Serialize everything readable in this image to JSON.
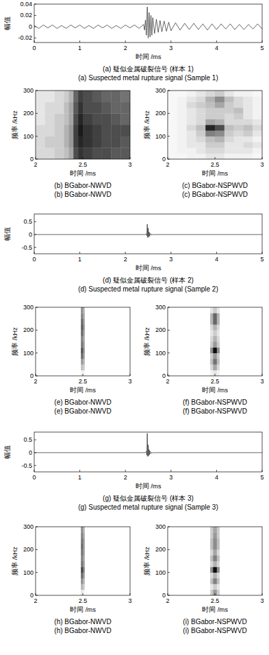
{
  "chart_data": [
    {
      "type": "line",
      "title": "(a) 疑似金属破裂信号 (样本 1)",
      "subtitle": "(a) Suspected metal rupture signal (Sample 1)",
      "xlabel": "时间 /ms",
      "ylabel": "幅值",
      "x": [
        0,
        0.1,
        0.2,
        0.3,
        0.4,
        0.5,
        0.6,
        0.7,
        0.8,
        0.9,
        1.0,
        1.1,
        1.2,
        1.3,
        1.4,
        1.5,
        1.6,
        1.7,
        1.8,
        1.9,
        2.0,
        2.1,
        2.2,
        2.3,
        2.4,
        2.42,
        2.44,
        2.46,
        2.48,
        2.5,
        2.52,
        2.54,
        2.56,
        2.58,
        2.6,
        2.64,
        2.68,
        2.72,
        2.76,
        2.8,
        2.85,
        2.9,
        2.95,
        3.0,
        3.1,
        3.2,
        3.3,
        3.4,
        3.5,
        3.6,
        3.7,
        3.8,
        3.9,
        4.0,
        4.1,
        4.2,
        4.3,
        4.4,
        4.5,
        4.6,
        4.7,
        4.8,
        4.9,
        5.0
      ],
      "values": [
        0.002,
        -0.003,
        0.003,
        -0.002,
        0.003,
        -0.003,
        0.002,
        -0.003,
        0.003,
        -0.002,
        0.003,
        -0.003,
        0.002,
        -0.003,
        0.003,
        -0.002,
        0.003,
        -0.003,
        0.002,
        -0.003,
        0.003,
        -0.002,
        0.003,
        -0.003,
        0.004,
        -0.006,
        0.012,
        -0.015,
        0.035,
        -0.02,
        0.025,
        -0.018,
        0.02,
        -0.015,
        0.016,
        -0.012,
        0.013,
        -0.01,
        0.011,
        -0.009,
        0.01,
        -0.008,
        0.008,
        -0.007,
        0.007,
        -0.006,
        0.006,
        -0.005,
        0.006,
        -0.005,
        0.005,
        -0.006,
        0.005,
        -0.005,
        0.005,
        -0.004,
        0.005,
        -0.005,
        0.004,
        -0.005,
        0.004,
        -0.004,
        0.005,
        -0.004
      ],
      "color": "#222222",
      "xlim": [
        0,
        5
      ],
      "ylim": [
        -0.028,
        0.04
      ],
      "xticks": [
        0,
        1,
        2,
        3,
        4,
        5
      ],
      "yticks": [
        -0.02,
        0,
        0.02,
        0.04
      ]
    },
    {
      "type": "heatmap",
      "title": "(b) BGabor-NWVD",
      "subtitle": "(b) BGabor-NWVD",
      "xlabel": "时间 /ms",
      "ylabel": "频率 /kHz",
      "x_edges": [
        2,
        2.1,
        2.2,
        2.3,
        2.35,
        2.4,
        2.45,
        2.5,
        2.6,
        2.7,
        2.8,
        2.9,
        3
      ],
      "y_edges": [
        0,
        50,
        100,
        150,
        200,
        250,
        300
      ],
      "cells": [
        [
          0.15,
          0.15,
          0.2,
          0.25,
          0.35,
          0.7,
          0.8,
          0.75,
          0.7,
          0.7,
          0.65,
          0.65
        ],
        [
          0.15,
          0.2,
          0.2,
          0.3,
          0.4,
          0.75,
          0.85,
          0.8,
          0.75,
          0.7,
          0.7,
          0.65
        ],
        [
          0.15,
          0.15,
          0.2,
          0.3,
          0.4,
          0.75,
          0.9,
          0.8,
          0.75,
          0.7,
          0.7,
          0.7
        ],
        [
          0.1,
          0.15,
          0.2,
          0.25,
          0.35,
          0.7,
          0.85,
          0.75,
          0.7,
          0.7,
          0.65,
          0.6
        ],
        [
          0.1,
          0.15,
          0.15,
          0.25,
          0.35,
          0.65,
          0.8,
          0.7,
          0.7,
          0.65,
          0.6,
          0.6
        ],
        [
          0.1,
          0.1,
          0.15,
          0.2,
          0.3,
          0.6,
          0.75,
          0.7,
          0.65,
          0.6,
          0.6,
          0.55
        ]
      ],
      "zlim": [
        0,
        1
      ],
      "color": "#000000",
      "xlim": [
        2,
        3
      ],
      "ylim": [
        0,
        300
      ],
      "xticks": [
        2,
        2.5,
        3
      ],
      "yticks": [
        0,
        100,
        200,
        300
      ]
    },
    {
      "type": "heatmap",
      "title": "(c) BGabor-NSPWVD",
      "subtitle": "(c) BGabor-NSPWVD",
      "xlabel": "时间 /ms",
      "ylabel": "频率 /kHz",
      "x_edges": [
        2,
        2.1,
        2.2,
        2.3,
        2.4,
        2.5,
        2.6,
        2.7,
        2.8,
        2.9,
        3
      ],
      "y_edges": [
        0,
        25,
        50,
        75,
        100,
        125,
        150,
        175,
        200,
        225,
        250,
        275,
        300
      ],
      "cells": [
        [
          0.03,
          0.03,
          0.05,
          0.05,
          0.1,
          0.1,
          0.05,
          0.05,
          0.05,
          0.03
        ],
        [
          0.03,
          0.05,
          0.05,
          0.1,
          0.15,
          0.15,
          0.1,
          0.1,
          0.1,
          0.05
        ],
        [
          0.03,
          0.05,
          0.1,
          0.1,
          0.2,
          0.2,
          0.1,
          0.1,
          0.15,
          0.1
        ],
        [
          0.03,
          0.05,
          0.1,
          0.15,
          0.25,
          0.3,
          0.15,
          0.1,
          0.1,
          0.05
        ],
        [
          0.03,
          0.05,
          0.1,
          0.2,
          0.5,
          0.45,
          0.2,
          0.15,
          0.2,
          0.1
        ],
        [
          0.03,
          0.05,
          0.15,
          0.25,
          0.85,
          0.7,
          0.25,
          0.2,
          0.25,
          0.15
        ],
        [
          0.03,
          0.05,
          0.1,
          0.15,
          0.35,
          0.3,
          0.15,
          0.15,
          0.15,
          0.1
        ],
        [
          0.03,
          0.05,
          0.1,
          0.15,
          0.2,
          0.2,
          0.15,
          0.2,
          0.1,
          0.05
        ],
        [
          0.03,
          0.05,
          0.1,
          0.15,
          0.2,
          0.2,
          0.2,
          0.25,
          0.1,
          0.05
        ],
        [
          0.03,
          0.05,
          0.15,
          0.2,
          0.25,
          0.35,
          0.2,
          0.15,
          0.1,
          0.05
        ],
        [
          0.03,
          0.05,
          0.1,
          0.15,
          0.3,
          0.45,
          0.25,
          0.15,
          0.1,
          0.05
        ],
        [
          0.03,
          0.03,
          0.05,
          0.1,
          0.15,
          0.2,
          0.1,
          0.05,
          0.05,
          0.03
        ]
      ],
      "zlim": [
        0,
        1
      ],
      "color": "#000000",
      "xlim": [
        2,
        3
      ],
      "ylim": [
        0,
        300
      ],
      "xticks": [
        2,
        2.5,
        3
      ],
      "yticks": [
        0,
        100,
        200,
        300
      ]
    },
    {
      "type": "line",
      "title": "(d) 疑似金属破裂信号 (样本 2)",
      "subtitle": "(d) Suspected metal rupture signal (Sample 2)",
      "xlabel": "时间 /ms",
      "ylabel": "幅值",
      "x": [
        0,
        2.44,
        2.46,
        2.47,
        2.48,
        2.49,
        2.5,
        2.51,
        2.52,
        2.53,
        2.54,
        2.56,
        2.58,
        2.6,
        2.65,
        5
      ],
      "values": [
        0,
        0,
        0.03,
        -0.05,
        0.4,
        -0.12,
        0.25,
        -0.1,
        0.1,
        -0.06,
        0.05,
        -0.03,
        0.02,
        -0.01,
        0,
        0
      ],
      "color": "#222222",
      "xlim": [
        0,
        5
      ],
      "ylim": [
        -0.75,
        0.8
      ],
      "xticks": [
        0,
        1,
        2,
        3,
        4,
        5
      ],
      "yticks": [
        -0.5,
        0,
        0.5
      ]
    },
    {
      "type": "heatmap",
      "title": "(e) BGabor-NWVD",
      "subtitle": "(e) BGabor-NWVD",
      "xlabel": "时间 /ms",
      "ylabel": "频率 /kHz",
      "x_edges": [
        2,
        2.48,
        2.5,
        2.52,
        3
      ],
      "y_edges": [
        0,
        25,
        50,
        75,
        100,
        125,
        150,
        175,
        200,
        225,
        250,
        275,
        300
      ],
      "cells": [
        [
          0,
          0.05,
          0.05,
          0
        ],
        [
          0,
          0.25,
          0.2,
          0
        ],
        [
          0,
          0.4,
          0.3,
          0
        ],
        [
          0,
          0.6,
          0.4,
          0
        ],
        [
          0,
          0.7,
          0.45,
          0
        ],
        [
          0,
          0.55,
          0.4,
          0
        ],
        [
          0,
          0.5,
          0.35,
          0
        ],
        [
          0,
          0.6,
          0.4,
          0
        ],
        [
          0,
          0.65,
          0.45,
          0
        ],
        [
          0,
          0.6,
          0.4,
          0
        ],
        [
          0,
          0.5,
          0.35,
          0
        ],
        [
          0,
          0.45,
          0.3,
          0
        ]
      ],
      "zlim": [
        0,
        1
      ],
      "color": "#000000",
      "xlim": [
        2,
        3
      ],
      "ylim": [
        0,
        300
      ],
      "xticks": [
        2,
        2.5,
        3
      ],
      "yticks": [
        0,
        100,
        200,
        300
      ]
    },
    {
      "type": "heatmap",
      "title": "(f) BGabor-NSPWVD",
      "subtitle": "(f) BGabor-NSPWVD",
      "xlabel": "时间 /ms",
      "ylabel": "频率 /kHz",
      "x_edges": [
        2,
        2.45,
        2.48,
        2.52,
        2.55,
        3
      ],
      "y_edges": [
        0,
        25,
        50,
        75,
        100,
        125,
        150,
        175,
        200,
        225,
        250,
        275,
        300
      ],
      "cells": [
        [
          0,
          0.05,
          0.1,
          0.05,
          0
        ],
        [
          0,
          0.15,
          0.35,
          0.15,
          0
        ],
        [
          0,
          0.25,
          0.55,
          0.25,
          0
        ],
        [
          0,
          0.2,
          0.4,
          0.2,
          0
        ],
        [
          0,
          0.45,
          0.95,
          0.45,
          0
        ],
        [
          0,
          0.2,
          0.4,
          0.2,
          0
        ],
        [
          0,
          0.15,
          0.3,
          0.15,
          0
        ],
        [
          0,
          0.1,
          0.2,
          0.1,
          0
        ],
        [
          0,
          0.15,
          0.3,
          0.15,
          0
        ],
        [
          0,
          0.3,
          0.6,
          0.3,
          0
        ],
        [
          0,
          0.3,
          0.6,
          0.3,
          0
        ],
        [
          0,
          0.1,
          0.2,
          0.1,
          0
        ]
      ],
      "zlim": [
        0,
        1
      ],
      "color": "#000000",
      "xlim": [
        2,
        3
      ],
      "ylim": [
        0,
        300
      ],
      "xticks": [
        2,
        2.5,
        3
      ],
      "yticks": [
        0,
        100,
        200,
        300
      ]
    },
    {
      "type": "line",
      "title": "(g) 疑似金属破裂信号 (样本 3)",
      "subtitle": "(g) Suspected metal rupture signal (Sample 3)",
      "xlabel": "时间 /ms",
      "ylabel": "幅值",
      "x": [
        0,
        2.44,
        2.46,
        2.47,
        2.48,
        2.49,
        2.5,
        2.51,
        2.52,
        2.53,
        2.54,
        2.56,
        2.58,
        2.6,
        2.65,
        5
      ],
      "values": [
        0,
        0,
        0.05,
        -0.1,
        0.75,
        -0.15,
        0.3,
        -0.12,
        0.12,
        -0.08,
        0.06,
        -0.04,
        0.02,
        -0.01,
        0,
        0
      ],
      "color": "#222222",
      "xlim": [
        0,
        5
      ],
      "ylim": [
        -0.75,
        0.8
      ],
      "xticks": [
        0,
        1,
        2,
        3,
        4,
        5
      ],
      "yticks": [
        -0.5,
        0,
        0.5
      ]
    },
    {
      "type": "heatmap",
      "title": "(h) BGabor-NWVD",
      "subtitle": "(h) BGabor-NWVD",
      "xlabel": "时间 /ms",
      "ylabel": "频率 /kHz",
      "x_edges": [
        2,
        2.48,
        2.5,
        2.52,
        3
      ],
      "y_edges": [
        0,
        25,
        50,
        75,
        100,
        125,
        150,
        175,
        200,
        225,
        250,
        275,
        300
      ],
      "cells": [
        [
          0,
          0.1,
          0.05,
          0
        ],
        [
          0,
          0.3,
          0.2,
          0
        ],
        [
          0,
          0.45,
          0.3,
          0
        ],
        [
          0,
          0.6,
          0.4,
          0
        ],
        [
          0,
          0.75,
          0.5,
          0
        ],
        [
          0,
          0.55,
          0.4,
          0
        ],
        [
          0,
          0.5,
          0.35,
          0
        ],
        [
          0,
          0.55,
          0.4,
          0
        ],
        [
          0,
          0.6,
          0.4,
          0
        ],
        [
          0,
          0.55,
          0.4,
          0
        ],
        [
          0,
          0.5,
          0.35,
          0
        ],
        [
          0,
          0.45,
          0.3,
          0
        ]
      ],
      "zlim": [
        0,
        1
      ],
      "color": "#000000",
      "xlim": [
        2,
        3
      ],
      "ylim": [
        0,
        300
      ],
      "xticks": [
        2,
        2.5,
        3
      ],
      "yticks": [
        0,
        100,
        200,
        300
      ]
    },
    {
      "type": "heatmap",
      "title": "(i) BGabor-NSPWVD",
      "subtitle": "(i) BGabor-NSPWVD",
      "xlabel": "时间 /ms",
      "ylabel": "频率 /kHz",
      "x_edges": [
        2,
        2.45,
        2.48,
        2.52,
        2.55,
        3
      ],
      "y_edges": [
        0,
        25,
        50,
        75,
        100,
        125,
        150,
        175,
        200,
        225,
        250,
        275,
        300
      ],
      "cells": [
        [
          0,
          0.2,
          0.4,
          0.2,
          0
        ],
        [
          0,
          0.1,
          0.2,
          0.1,
          0
        ],
        [
          0,
          0.25,
          0.5,
          0.25,
          0
        ],
        [
          0,
          0.15,
          0.3,
          0.15,
          0
        ],
        [
          0,
          0.45,
          0.95,
          0.45,
          0
        ],
        [
          0,
          0.15,
          0.3,
          0.15,
          0
        ],
        [
          0,
          0.25,
          0.5,
          0.25,
          0
        ],
        [
          0,
          0.15,
          0.35,
          0.15,
          0
        ],
        [
          0,
          0.25,
          0.45,
          0.25,
          0
        ],
        [
          0,
          0.25,
          0.45,
          0.25,
          0
        ],
        [
          0,
          0.2,
          0.4,
          0.2,
          0
        ],
        [
          0,
          0.2,
          0.35,
          0.2,
          0
        ]
      ],
      "zlim": [
        0,
        1
      ],
      "color": "#000000",
      "xlim": [
        2,
        3
      ],
      "ylim": [
        0,
        300
      ],
      "xticks": [
        2,
        2.5,
        3
      ],
      "yticks": [
        0,
        100,
        200,
        300
      ]
    }
  ]
}
